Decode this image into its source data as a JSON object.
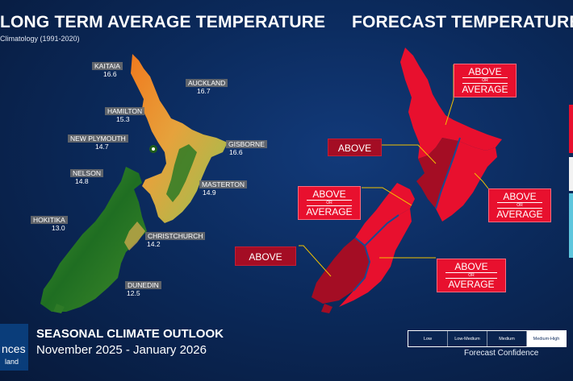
{
  "left_panel": {
    "title": "LONG TERM AVERAGE TEMPERATURE",
    "subtitle": "Climatology (1991-2020)",
    "cities": [
      {
        "name": "KAITAIA",
        "value": "16.6"
      },
      {
        "name": "AUCKLAND",
        "value": "16.7"
      },
      {
        "name": "HAMILTON",
        "value": "15.3"
      },
      {
        "name": "NEW PLYMOUTH",
        "value": "14.7"
      },
      {
        "name": "GISBORNE",
        "value": "16.6"
      },
      {
        "name": "NELSON",
        "value": "14.8"
      },
      {
        "name": "MASTERTON",
        "value": "14.9"
      },
      {
        "name": "HOKITIKA",
        "value": "13.0"
      },
      {
        "name": "CHRISTCHURCH",
        "value": "14.2"
      },
      {
        "name": "DUNEDIN",
        "value": "12.5"
      }
    ]
  },
  "right_panel": {
    "title": "FORECAST TEMPERATURE",
    "regions": [
      {
        "line1": "ABOVE",
        "or": "OR",
        "line2": "AVERAGE"
      },
      {
        "line1": "ABOVE"
      },
      {
        "line1": "ABOVE",
        "or": "OR",
        "line2": "AVERAGE"
      },
      {
        "line1": "ABOVE",
        "or": "OR",
        "line2": "AVERAGE"
      },
      {
        "line1": "ABOVE"
      },
      {
        "line1": "ABOVE",
        "or": "OR",
        "line2": "AVERAGE"
      }
    ]
  },
  "footer": {
    "outlook_title": "SEASONAL CLIMATE OUTLOOK",
    "period": "November 2025 - January 2026",
    "logo_line1": "nces",
    "logo_line2": "land"
  },
  "confidence": {
    "label": "Forecast Confidence",
    "levels": [
      "Low",
      "Low-Medium",
      "Medium",
      "Medium-High"
    ],
    "selected": "Medium-High"
  },
  "colors": {
    "background": "#0b2a5c",
    "above": "#e8102e",
    "above_or_average": "#e8102e",
    "above_dark": "#a40d24",
    "leader_line": "#f2c200"
  }
}
